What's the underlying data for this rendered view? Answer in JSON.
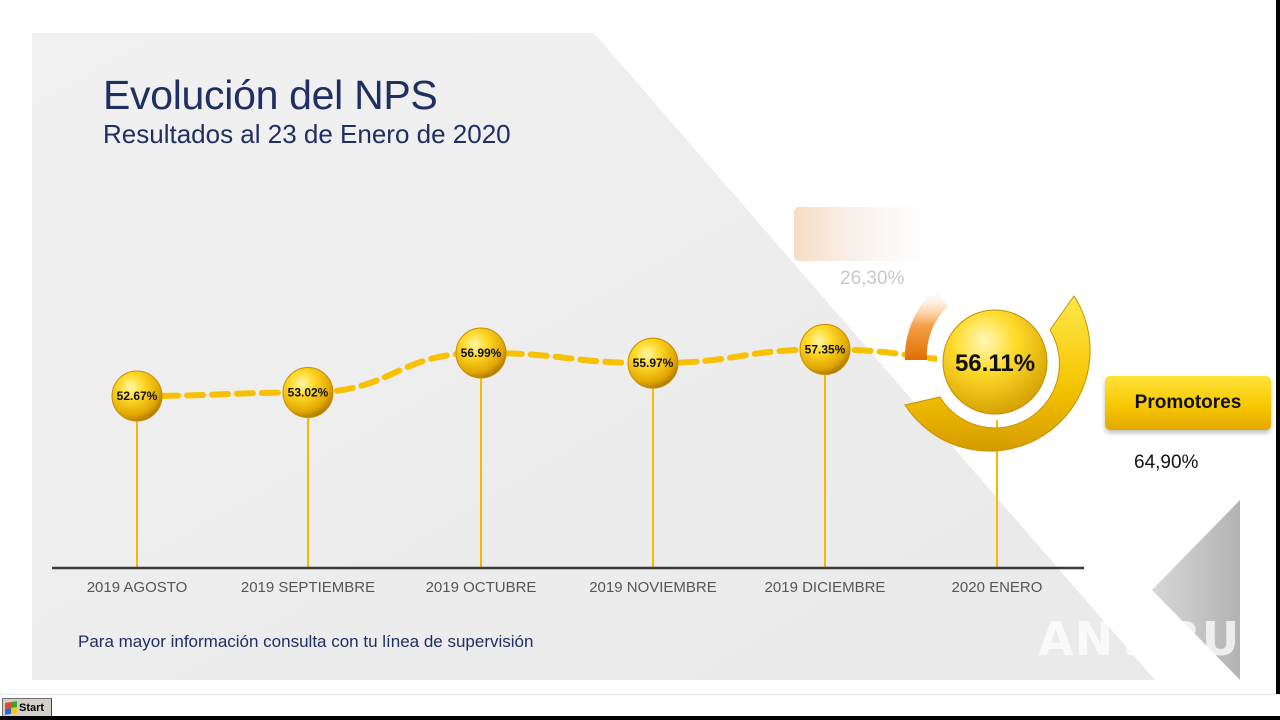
{
  "slide": {
    "title": "Evolución del NPS",
    "subtitle": "Resultados al 23 de Enero de 2020",
    "footer_note": "Para mayor información consulta con tu línea de supervisión",
    "detractores_value": "26,30%",
    "promotores_label": "Promotores",
    "promotores_value": "64,90%",
    "watermark": "ANY RUN"
  },
  "taskbar": {
    "start_label": "Start"
  },
  "colors": {
    "title": "#1f2f62",
    "accent_yellow": "#f7c800",
    "accent_orange": "#f08a10",
    "background_panel": "#eeeeee",
    "axis": "#333333"
  },
  "chart_data": {
    "type": "line",
    "title": "Evolución del NPS",
    "subtitle": "Resultados al 23 de Enero de 2020",
    "categories": [
      "2019 AGOSTO",
      "2019 SEPTIEMBRE",
      "2019 OCTUBRE",
      "2019 NOVIEMBRE",
      "2019 DICIEMBRE",
      "2020 ENERO"
    ],
    "values": [
      52.67,
      53.02,
      56.99,
      55.97,
      57.35,
      56.11
    ],
    "labels": [
      "52.67%",
      "53.02%",
      "56.99%",
      "55.97%",
      "57.35%",
      "56.11%"
    ],
    "unit": "%",
    "xlabel": "",
    "ylabel": "",
    "grid": false,
    "line_style": "dashed"
  }
}
